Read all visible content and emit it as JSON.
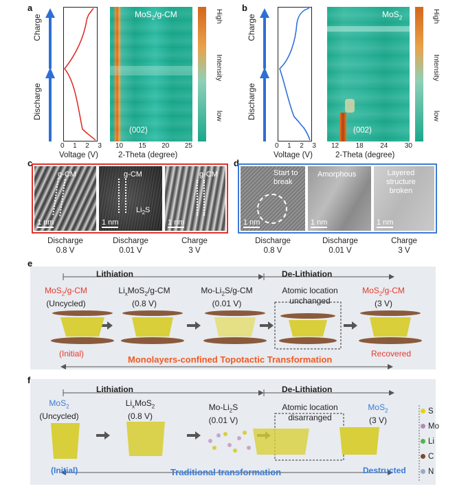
{
  "panels": {
    "a": "a",
    "b": "b",
    "c": "c",
    "d": "d",
    "e": "e",
    "f": "f"
  },
  "panel_a": {
    "charge": "Charge",
    "discharge": "Discharge",
    "voltage_ticks": [
      "0",
      "1",
      "2",
      "3"
    ],
    "voltage_label": "Voltage (V)",
    "map_label": "MoS",
    "map_label_sub": "2",
    "map_label_rest": "/g-CM",
    "peak": "(002)",
    "theta_ticks": [
      "10",
      "15",
      "20",
      "25"
    ],
    "theta_label": "2-Theta (degree)",
    "bar_high": "High",
    "bar_mid": "Intensity",
    "bar_low": "low"
  },
  "panel_b": {
    "charge": "Charge",
    "discharge": "Discharge",
    "voltage_ticks": [
      "0",
      "1",
      "2",
      "3"
    ],
    "voltage_label": "Voltage (V)",
    "map_label": "MoS",
    "map_label_sub": "2",
    "peak": "(002)",
    "theta_ticks": [
      "12",
      "18",
      "24",
      "30"
    ],
    "theta_label": "2-Theta (degree)",
    "bar_high": "High",
    "bar_mid": "Intensity",
    "bar_low": "low"
  },
  "panel_c": {
    "gcm1": "g-CM",
    "gcm2": "g-CM",
    "gcm3": "g-CM",
    "li2s": "Li",
    "li2s_sub": "2",
    "li2s_rest": "S",
    "scale": "1 nm",
    "captions": [
      [
        "Discharge",
        "0.8 V"
      ],
      [
        "Discharge",
        "0.01 V"
      ],
      [
        "Charge",
        "3 V"
      ]
    ]
  },
  "panel_d": {
    "t1a": "Start to",
    "t1b": "break",
    "t2": "Amorphous",
    "t3a": "Layered",
    "t3b": "structure",
    "t3c": "broken",
    "scale": "1 nm",
    "captions": [
      [
        "Discharge",
        "0.8 V"
      ],
      [
        "Discharge",
        "0.01 V"
      ],
      [
        "Charge",
        "3 V"
      ]
    ]
  },
  "panel_e": {
    "lithiation": "Lithiation",
    "delithiation": "De-Lithiation",
    "s1a": "MoS",
    "s1b": "2",
    "s1c": "/g-CM",
    "s1d": "(Uncycled)",
    "s2a": "Li",
    "s2b": "x",
    "s2c": "MoS",
    "s2d": "2",
    "s2e": "/g-CM",
    "s2f": "(0.8 V)",
    "s3a": "Mo-Li",
    "s3b": "2",
    "s3c": "S/g-CM",
    "s3d": "(0.01 V)",
    "s4a": "Atomic location",
    "s4b": "unchanged",
    "s5a": "MoS",
    "s5b": "2",
    "s5c": "/g-CM",
    "s5d": "(3 V)",
    "initial": "(Initial)",
    "recovered": "Recovered",
    "banner": "Monolayers-confined Topotactic Transformation"
  },
  "panel_f": {
    "lithiation": "Lithiation",
    "delithiation": "De-Lithiation",
    "s1a": "MoS",
    "s1b": "2",
    "s1d": "(Uncycled)",
    "s2a": "Li",
    "s2b": "x",
    "s2c": "MoS",
    "s2d": "2",
    "s2f": "(0.8 V)",
    "s3a": "Mo-Li",
    "s3b": "2",
    "s3c": "S",
    "s3d": "(0.01 V)",
    "s4a": "Atomic location",
    "s4b": "disarranged",
    "s5a": "MoS",
    "s5b": "2",
    "s5d": "(3 V)",
    "initial": "(Initial)",
    "destructed": "Destructed",
    "banner": "Traditional transformation",
    "legend": [
      "S",
      "Mo",
      "Li",
      "C",
      "N"
    ]
  },
  "colors": {
    "red": "#e53a2a",
    "blue": "#3b7bd6",
    "orange": "#f05a23",
    "darkblue": "#2e5fb5",
    "cyan": "#1fb08f"
  }
}
